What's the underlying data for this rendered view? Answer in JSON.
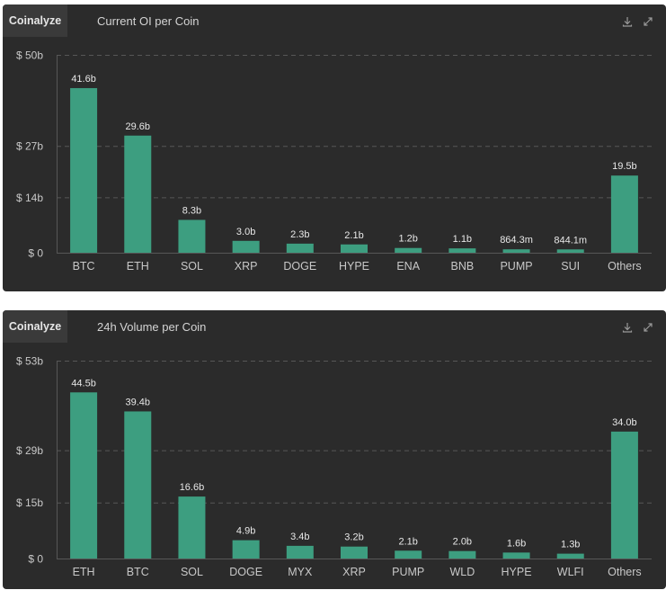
{
  "colors": {
    "panel_bg": "#2b2b2b",
    "brand_bg": "#3a3a3a",
    "bar": "#3d9e80",
    "grid": "#575757",
    "axis_text": "#c8c8c8",
    "value_text": "#e8e8e8"
  },
  "panels": [
    {
      "brand": "Coinalyze",
      "title": "Current OI per Coin",
      "icons": [
        "download-icon",
        "expand-icon"
      ],
      "chart_data": {
        "type": "bar",
        "title": "Current OI per Coin",
        "categories": [
          "BTC",
          "ETH",
          "SOL",
          "XRP",
          "DOGE",
          "HYPE",
          "ENA",
          "BNB",
          "PUMP",
          "SUI",
          "Others"
        ],
        "values": [
          41.6,
          29.6,
          8.3,
          3.0,
          2.3,
          2.1,
          1.2,
          1.1,
          0.8643,
          0.8441,
          19.5
        ],
        "value_labels": [
          "41.6b",
          "29.6b",
          "8.3b",
          "3.0b",
          "2.3b",
          "2.1b",
          "1.2b",
          "1.1b",
          "864.3m",
          "844.1m",
          "19.5b"
        ],
        "y_ticks": [
          0,
          14,
          27,
          50
        ],
        "y_tick_labels": [
          "$ 0",
          "$ 14b",
          "$ 27b",
          "$ 50b"
        ],
        "ylim": [
          0,
          50
        ],
        "grid": true,
        "xlabel": "",
        "ylabel": ""
      }
    },
    {
      "brand": "Coinalyze",
      "title": "24h Volume per Coin",
      "icons": [
        "download-icon",
        "expand-icon"
      ],
      "chart_data": {
        "type": "bar",
        "title": "24h Volume per Coin",
        "categories": [
          "ETH",
          "BTC",
          "SOL",
          "DOGE",
          "MYX",
          "XRP",
          "PUMP",
          "WLD",
          "HYPE",
          "WLFI",
          "Others"
        ],
        "values": [
          44.5,
          39.4,
          16.6,
          4.9,
          3.4,
          3.2,
          2.1,
          2.0,
          1.6,
          1.3,
          34.0
        ],
        "value_labels": [
          "44.5b",
          "39.4b",
          "16.6b",
          "4.9b",
          "3.4b",
          "3.2b",
          "2.1b",
          "2.0b",
          "1.6b",
          "1.3b",
          "34.0b"
        ],
        "y_ticks": [
          0,
          15,
          29,
          53
        ],
        "y_tick_labels": [
          "$ 0",
          "$ 15b",
          "$ 29b",
          "$ 53b"
        ],
        "ylim": [
          0,
          53
        ],
        "grid": true,
        "xlabel": "",
        "ylabel": ""
      }
    }
  ]
}
